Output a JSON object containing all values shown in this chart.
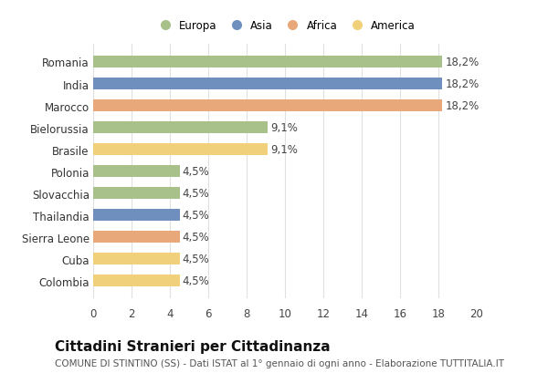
{
  "categories": [
    "Romania",
    "India",
    "Marocco",
    "Bielorussia",
    "Brasile",
    "Polonia",
    "Slovacchia",
    "Thailandia",
    "Sierra Leone",
    "Cuba",
    "Colombia"
  ],
  "values": [
    18.2,
    18.2,
    18.2,
    9.1,
    9.1,
    4.5,
    4.5,
    4.5,
    4.5,
    4.5,
    4.5
  ],
  "labels": [
    "18,2%",
    "18,2%",
    "18,2%",
    "9,1%",
    "9,1%",
    "4,5%",
    "4,5%",
    "4,5%",
    "4,5%",
    "4,5%",
    "4,5%"
  ],
  "bar_colors": [
    "#a8c08a",
    "#6f8fbe",
    "#e8a87a",
    "#a8c08a",
    "#f0d07a",
    "#a8c08a",
    "#a8c08a",
    "#6f8fbe",
    "#e8a87a",
    "#f0d07a",
    "#f0d07a"
  ],
  "legend_labels": [
    "Europa",
    "Asia",
    "Africa",
    "America"
  ],
  "legend_colors": [
    "#a8c08a",
    "#6f8fbe",
    "#e8a87a",
    "#f0d07a"
  ],
  "xlim": [
    0,
    20
  ],
  "xticks": [
    0,
    2,
    4,
    6,
    8,
    10,
    12,
    14,
    16,
    18,
    20
  ],
  "title": "Cittadini Stranieri per Cittadinanza",
  "subtitle": "COMUNE DI STINTINO (SS) - Dati ISTAT al 1° gennaio di ogni anno - Elaborazione TUTTITALIA.IT",
  "background_color": "#ffffff",
  "grid_color": "#e0e0e0",
  "label_fontsize": 8.5,
  "title_fontsize": 11,
  "subtitle_fontsize": 7.5
}
